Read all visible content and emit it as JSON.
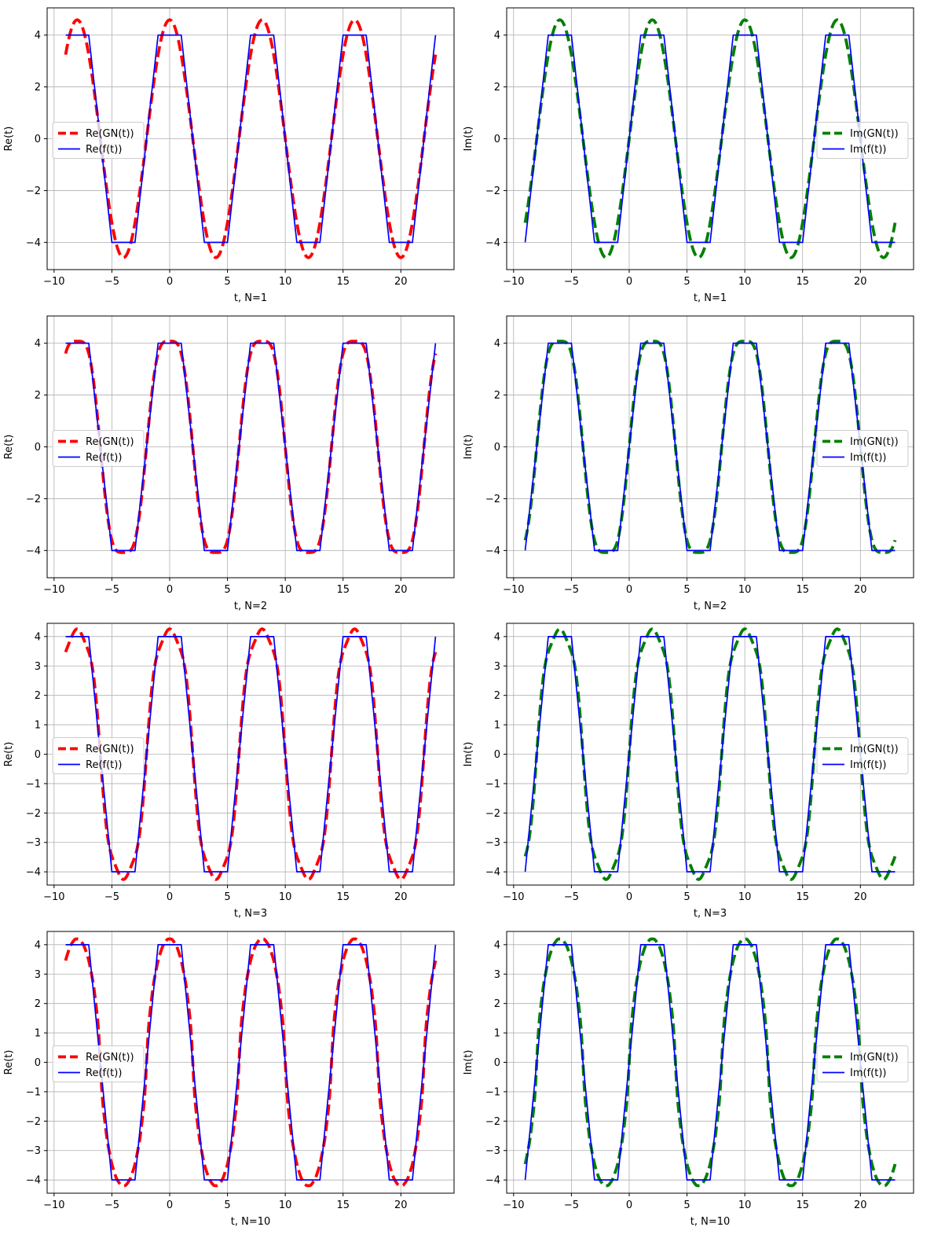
{
  "chart_data": [
    {
      "type": "line",
      "xlabel": "t, N=1",
      "ylabel": "Re(t)",
      "xlim": [
        -10.6,
        24.6
      ],
      "ylim": [
        -5.05,
        5.05
      ],
      "xticks": [
        -10,
        -5,
        0,
        5,
        10,
        15,
        20
      ],
      "yticks": [
        -4,
        -2,
        0,
        2,
        4
      ],
      "grid": true,
      "legend": "center-left",
      "series": [
        {
          "name": "Re(GN(t))",
          "color": "#ff0000",
          "style": "dashed",
          "kind": "re",
          "N": 1
        },
        {
          "name": "Re(f(t))",
          "color": "#0000ff",
          "style": "solid",
          "kind": "re",
          "N": 0
        }
      ]
    },
    {
      "type": "line",
      "xlabel": "t, N=1",
      "ylabel": "Im(t)",
      "xlim": [
        -10.6,
        24.6
      ],
      "ylim": [
        -5.05,
        5.05
      ],
      "xticks": [
        -10,
        -5,
        0,
        5,
        10,
        15,
        20
      ],
      "yticks": [
        -4,
        -2,
        0,
        2,
        4
      ],
      "grid": true,
      "legend": "center-right",
      "series": [
        {
          "name": "Im(GN(t))",
          "color": "#008000",
          "style": "dashed",
          "kind": "im",
          "N": 1
        },
        {
          "name": "Im(f(t))",
          "color": "#0000ff",
          "style": "solid",
          "kind": "im",
          "N": 0
        }
      ]
    },
    {
      "type": "line",
      "xlabel": "t, N=2",
      "ylabel": "Re(t)",
      "xlim": [
        -10.6,
        24.6
      ],
      "ylim": [
        -5.05,
        5.05
      ],
      "xticks": [
        -10,
        -5,
        0,
        5,
        10,
        15,
        20
      ],
      "yticks": [
        -4,
        -2,
        0,
        2,
        4
      ],
      "grid": true,
      "legend": "center-left",
      "series": [
        {
          "name": "Re(GN(t))",
          "color": "#ff0000",
          "style": "dashed",
          "kind": "re",
          "N": 2
        },
        {
          "name": "Re(f(t))",
          "color": "#0000ff",
          "style": "solid",
          "kind": "re",
          "N": 0
        }
      ]
    },
    {
      "type": "line",
      "xlabel": "t, N=2",
      "ylabel": "Im(t)",
      "xlim": [
        -10.6,
        24.6
      ],
      "ylim": [
        -5.05,
        5.05
      ],
      "xticks": [
        -10,
        -5,
        0,
        5,
        10,
        15,
        20
      ],
      "yticks": [
        -4,
        -2,
        0,
        2,
        4
      ],
      "grid": true,
      "legend": "center-right",
      "series": [
        {
          "name": "Im(GN(t))",
          "color": "#008000",
          "style": "dashed",
          "kind": "im",
          "N": 2
        },
        {
          "name": "Im(f(t))",
          "color": "#0000ff",
          "style": "solid",
          "kind": "im",
          "N": 0
        }
      ]
    },
    {
      "type": "line",
      "xlabel": "t, N=3",
      "ylabel": "Re(t)",
      "xlim": [
        -10.6,
        24.6
      ],
      "ylim": [
        -4.45,
        4.45
      ],
      "xticks": [
        -10,
        -5,
        0,
        5,
        10,
        15,
        20
      ],
      "yticks": [
        -4,
        -3,
        -2,
        -1,
        0,
        1,
        2,
        3,
        4
      ],
      "grid": true,
      "legend": "center-left",
      "series": [
        {
          "name": "Re(GN(t))",
          "color": "#ff0000",
          "style": "dashed",
          "kind": "re",
          "N": 3
        },
        {
          "name": "Re(f(t))",
          "color": "#0000ff",
          "style": "solid",
          "kind": "re",
          "N": 0
        }
      ]
    },
    {
      "type": "line",
      "xlabel": "t, N=3",
      "ylabel": "Im(t)",
      "xlim": [
        -10.6,
        24.6
      ],
      "ylim": [
        -4.45,
        4.45
      ],
      "xticks": [
        -10,
        -5,
        0,
        5,
        10,
        15,
        20
      ],
      "yticks": [
        -4,
        -3,
        -2,
        -1,
        0,
        1,
        2,
        3,
        4
      ],
      "grid": true,
      "legend": "center-right",
      "series": [
        {
          "name": "Im(GN(t))",
          "color": "#008000",
          "style": "dashed",
          "kind": "im",
          "N": 3
        },
        {
          "name": "Im(f(t))",
          "color": "#0000ff",
          "style": "solid",
          "kind": "im",
          "N": 0
        }
      ]
    },
    {
      "type": "line",
      "xlabel": "t, N=10",
      "ylabel": "Re(t)",
      "xlim": [
        -10.6,
        24.6
      ],
      "ylim": [
        -4.45,
        4.45
      ],
      "xticks": [
        -10,
        -5,
        0,
        5,
        10,
        15,
        20
      ],
      "yticks": [
        -4,
        -3,
        -2,
        -1,
        0,
        1,
        2,
        3,
        4
      ],
      "grid": true,
      "legend": "center-left",
      "series": [
        {
          "name": "Re(GN(t))",
          "color": "#ff0000",
          "style": "dashed",
          "kind": "re",
          "N": 10
        },
        {
          "name": "Re(f(t))",
          "color": "#0000ff",
          "style": "solid",
          "kind": "re",
          "N": 0
        }
      ]
    },
    {
      "type": "line",
      "xlabel": "t, N=10",
      "ylabel": "Im(t)",
      "xlim": [
        -10.6,
        24.6
      ],
      "ylim": [
        -4.45,
        4.45
      ],
      "xticks": [
        -10,
        -5,
        0,
        5,
        10,
        15,
        20
      ],
      "yticks": [
        -4,
        -3,
        -2,
        -1,
        0,
        1,
        2,
        3,
        4
      ],
      "grid": true,
      "legend": "center-right",
      "series": [
        {
          "name": "Im(GN(t))",
          "color": "#008000",
          "style": "dashed",
          "kind": "im",
          "N": 10
        },
        {
          "name": "Im(f(t))",
          "color": "#0000ff",
          "style": "solid",
          "kind": "im",
          "N": 0
        }
      ]
    }
  ]
}
